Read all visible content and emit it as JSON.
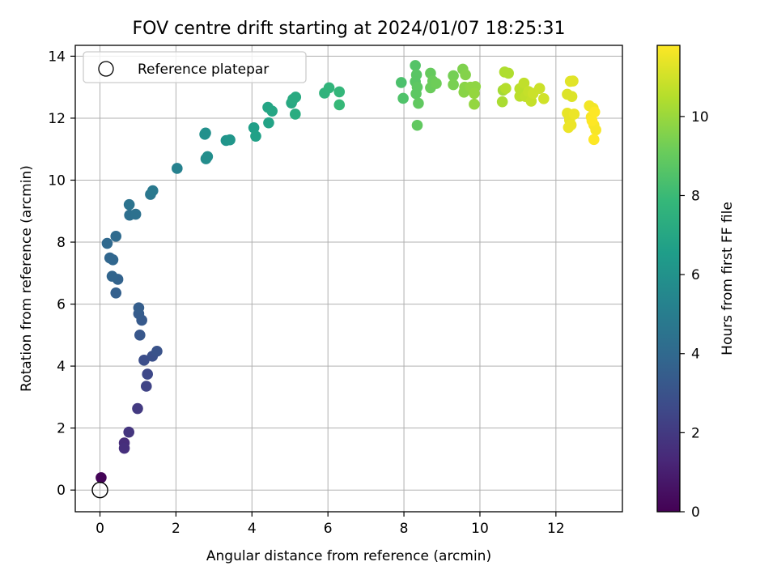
{
  "chart_data": {
    "type": "scatter",
    "title": "FOV centre drift starting at 2024/01/07 18:25:31",
    "xlabel": "Angular distance from reference (arcmin)",
    "ylabel": "Rotation from reference (arcmin)",
    "xlim": [
      -0.65,
      13.75
    ],
    "ylim": [
      -0.7,
      14.35
    ],
    "xticks": [
      0,
      2,
      4,
      6,
      8,
      10,
      12
    ],
    "yticks": [
      0,
      2,
      4,
      6,
      8,
      10,
      12,
      14
    ],
    "grid": true,
    "legend": {
      "placement": "upper-left",
      "entries": [
        "Reference platepar"
      ]
    },
    "colorbar": {
      "label": "Hours from first FF file",
      "colormap": "viridis",
      "range": [
        0,
        11.8
      ],
      "ticks": [
        0,
        2,
        4,
        6,
        8,
        10
      ]
    },
    "reference_point": {
      "x": 0,
      "y": 0
    },
    "points": [
      {
        "x": 0.03,
        "y": 0.4,
        "c": 0.1
      },
      {
        "x": 0.64,
        "y": 1.52,
        "c": 1.5
      },
      {
        "x": 0.64,
        "y": 1.35,
        "c": 1.6
      },
      {
        "x": 0.76,
        "y": 1.87,
        "c": 1.8
      },
      {
        "x": 0.99,
        "y": 2.63,
        "c": 2.0
      },
      {
        "x": 1.22,
        "y": 3.35,
        "c": 2.4
      },
      {
        "x": 1.25,
        "y": 3.74,
        "c": 2.6
      },
      {
        "x": 1.16,
        "y": 4.19,
        "c": 2.8
      },
      {
        "x": 1.38,
        "y": 4.32,
        "c": 2.9
      },
      {
        "x": 1.5,
        "y": 4.48,
        "c": 3.0
      },
      {
        "x": 1.05,
        "y": 5.0,
        "c": 3.2
      },
      {
        "x": 1.1,
        "y": 5.48,
        "c": 3.3
      },
      {
        "x": 1.02,
        "y": 5.69,
        "c": 3.4
      },
      {
        "x": 1.02,
        "y": 5.88,
        "c": 3.5
      },
      {
        "x": 0.42,
        "y": 6.36,
        "c": 3.6
      },
      {
        "x": 0.47,
        "y": 6.8,
        "c": 3.7
      },
      {
        "x": 0.32,
        "y": 6.9,
        "c": 3.8
      },
      {
        "x": 0.26,
        "y": 7.49,
        "c": 3.9
      },
      {
        "x": 0.34,
        "y": 7.43,
        "c": 3.9
      },
      {
        "x": 0.19,
        "y": 7.96,
        "c": 4.0
      },
      {
        "x": 0.42,
        "y": 8.19,
        "c": 4.1
      },
      {
        "x": 0.78,
        "y": 8.87,
        "c": 4.3
      },
      {
        "x": 0.94,
        "y": 8.9,
        "c": 4.4
      },
      {
        "x": 0.77,
        "y": 9.21,
        "c": 4.5
      },
      {
        "x": 1.33,
        "y": 9.54,
        "c": 4.7
      },
      {
        "x": 1.39,
        "y": 9.66,
        "c": 4.8
      },
      {
        "x": 2.03,
        "y": 10.38,
        "c": 5.2
      },
      {
        "x": 2.79,
        "y": 10.69,
        "c": 5.7
      },
      {
        "x": 2.83,
        "y": 10.76,
        "c": 5.8
      },
      {
        "x": 2.76,
        "y": 11.48,
        "c": 5.9
      },
      {
        "x": 2.78,
        "y": 11.52,
        "c": 5.9
      },
      {
        "x": 3.32,
        "y": 11.28,
        "c": 6.1
      },
      {
        "x": 3.42,
        "y": 11.3,
        "c": 6.2
      },
      {
        "x": 4.05,
        "y": 11.69,
        "c": 6.6
      },
      {
        "x": 4.1,
        "y": 11.42,
        "c": 6.7
      },
      {
        "x": 4.44,
        "y": 11.85,
        "c": 6.8
      },
      {
        "x": 4.42,
        "y": 12.35,
        "c": 6.9
      },
      {
        "x": 4.53,
        "y": 12.23,
        "c": 7.0
      },
      {
        "x": 5.04,
        "y": 12.49,
        "c": 7.1
      },
      {
        "x": 5.08,
        "y": 12.61,
        "c": 7.2
      },
      {
        "x": 5.15,
        "y": 12.68,
        "c": 7.2
      },
      {
        "x": 5.14,
        "y": 12.13,
        "c": 7.3
      },
      {
        "x": 5.91,
        "y": 12.81,
        "c": 7.6
      },
      {
        "x": 6.03,
        "y": 12.98,
        "c": 7.7
      },
      {
        "x": 6.3,
        "y": 12.85,
        "c": 7.8
      },
      {
        "x": 6.3,
        "y": 12.43,
        "c": 7.9
      },
      {
        "x": 7.93,
        "y": 13.15,
        "c": 8.4
      },
      {
        "x": 7.98,
        "y": 12.64,
        "c": 8.5
      },
      {
        "x": 8.3,
        "y": 13.7,
        "c": 8.6
      },
      {
        "x": 8.33,
        "y": 13.4,
        "c": 8.7
      },
      {
        "x": 8.3,
        "y": 13.18,
        "c": 8.7
      },
      {
        "x": 8.35,
        "y": 13.0,
        "c": 8.8
      },
      {
        "x": 8.32,
        "y": 12.79,
        "c": 8.8
      },
      {
        "x": 8.38,
        "y": 12.48,
        "c": 8.9
      },
      {
        "x": 8.35,
        "y": 11.77,
        "c": 8.9
      },
      {
        "x": 8.7,
        "y": 13.45,
        "c": 9.0
      },
      {
        "x": 8.76,
        "y": 13.2,
        "c": 9.1
      },
      {
        "x": 8.7,
        "y": 12.98,
        "c": 9.1
      },
      {
        "x": 8.85,
        "y": 13.12,
        "c": 9.2
      },
      {
        "x": 9.3,
        "y": 13.37,
        "c": 9.3
      },
      {
        "x": 9.3,
        "y": 13.08,
        "c": 9.4
      },
      {
        "x": 9.55,
        "y": 13.58,
        "c": 9.5
      },
      {
        "x": 9.62,
        "y": 13.4,
        "c": 9.6
      },
      {
        "x": 9.6,
        "y": 13.0,
        "c": 9.7
      },
      {
        "x": 9.58,
        "y": 12.84,
        "c": 9.7
      },
      {
        "x": 9.75,
        "y": 13.0,
        "c": 9.8
      },
      {
        "x": 9.88,
        "y": 13.02,
        "c": 9.8
      },
      {
        "x": 9.85,
        "y": 12.8,
        "c": 9.9
      },
      {
        "x": 9.85,
        "y": 12.45,
        "c": 9.9
      },
      {
        "x": 10.61,
        "y": 12.9,
        "c": 10.2
      },
      {
        "x": 10.59,
        "y": 12.53,
        "c": 10.3
      },
      {
        "x": 10.65,
        "y": 13.49,
        "c": 10.4
      },
      {
        "x": 10.75,
        "y": 13.45,
        "c": 10.4
      },
      {
        "x": 10.68,
        "y": 12.96,
        "c": 10.5
      },
      {
        "x": 11.05,
        "y": 12.71,
        "c": 10.6
      },
      {
        "x": 11.05,
        "y": 12.95,
        "c": 10.6
      },
      {
        "x": 11.16,
        "y": 13.13,
        "c": 10.7
      },
      {
        "x": 11.2,
        "y": 12.7,
        "c": 10.7
      },
      {
        "x": 11.28,
        "y": 12.86,
        "c": 10.8
      },
      {
        "x": 11.35,
        "y": 12.55,
        "c": 10.8
      },
      {
        "x": 11.4,
        "y": 12.8,
        "c": 10.9
      },
      {
        "x": 11.57,
        "y": 12.96,
        "c": 10.9
      },
      {
        "x": 11.68,
        "y": 12.63,
        "c": 11.0
      },
      {
        "x": 12.3,
        "y": 12.77,
        "c": 11.2
      },
      {
        "x": 12.42,
        "y": 12.7,
        "c": 11.2
      },
      {
        "x": 12.38,
        "y": 13.19,
        "c": 11.3
      },
      {
        "x": 12.45,
        "y": 13.2,
        "c": 11.3
      },
      {
        "x": 12.3,
        "y": 12.16,
        "c": 11.4
      },
      {
        "x": 12.36,
        "y": 11.94,
        "c": 11.4
      },
      {
        "x": 12.4,
        "y": 11.78,
        "c": 11.5
      },
      {
        "x": 12.48,
        "y": 12.13,
        "c": 11.5
      },
      {
        "x": 12.33,
        "y": 11.7,
        "c": 11.5
      },
      {
        "x": 12.88,
        "y": 12.4,
        "c": 11.6
      },
      {
        "x": 12.98,
        "y": 12.32,
        "c": 11.6
      },
      {
        "x": 12.93,
        "y": 12.04,
        "c": 11.7
      },
      {
        "x": 13.0,
        "y": 11.78,
        "c": 11.7
      },
      {
        "x": 13.05,
        "y": 11.62,
        "c": 11.7
      },
      {
        "x": 13.0,
        "y": 11.31,
        "c": 11.8
      },
      {
        "x": 12.95,
        "y": 11.92,
        "c": 11.8
      },
      {
        "x": 13.02,
        "y": 12.2,
        "c": 11.8
      }
    ]
  }
}
